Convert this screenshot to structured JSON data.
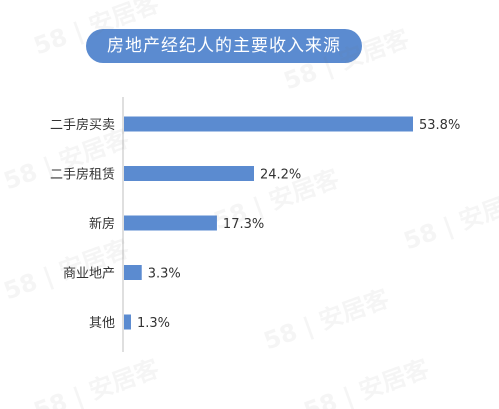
{
  "title": "房地产经纪人的主要收入来源",
  "watermark": "58 | 安居客",
  "colors": {
    "bar": "#5b8bd0",
    "title_bg": "#5b8bd0",
    "axis": "#bfbfbf",
    "text": "#333333"
  },
  "chart_data": {
    "type": "bar",
    "orientation": "horizontal",
    "title": "房地产经纪人的主要收入来源",
    "categories": [
      "二手房买卖",
      "二手房租赁",
      "新房",
      "商业地产",
      "其他"
    ],
    "values": [
      53.8,
      24.2,
      17.3,
      3.3,
      1.3
    ],
    "value_labels": [
      "53.8%",
      "24.2%",
      "17.3%",
      "3.3%",
      "1.3%"
    ],
    "unit": "%",
    "xlim": [
      0,
      53.8
    ],
    "grid": false,
    "legend": "none"
  }
}
